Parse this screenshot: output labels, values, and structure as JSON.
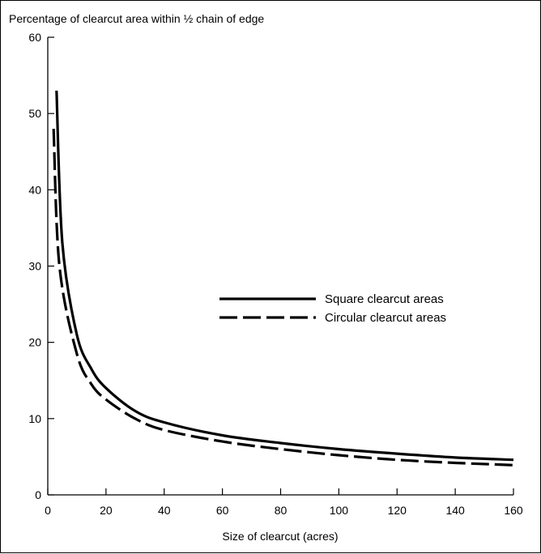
{
  "chart_data": {
    "type": "line",
    "title": "Percentage of clearcut area within ½ chain of edge",
    "xlabel": "Size of clearcut (acres)",
    "ylabel": "",
    "xlim": [
      0,
      160
    ],
    "ylim": [
      0,
      60
    ],
    "xticks": [
      "0",
      "20",
      "40",
      "60",
      "80",
      "100",
      "120",
      "140",
      "160"
    ],
    "yticks": [
      "0",
      "10",
      "20",
      "30",
      "40",
      "50",
      "60"
    ],
    "grid": false,
    "legend_position": "middle-right",
    "series": [
      {
        "name": "Square clearcut areas",
        "style": "solid",
        "x": [
          3,
          5,
          10,
          15,
          20,
          30,
          40,
          60,
          80,
          100,
          120,
          140,
          160
        ],
        "y": [
          53,
          33,
          21,
          16.5,
          14,
          11,
          9.5,
          7.8,
          6.8,
          6.0,
          5.4,
          4.9,
          4.6
        ]
      },
      {
        "name": "Circular clearcut areas",
        "style": "dashed",
        "x": [
          2,
          4,
          10,
          15,
          20,
          30,
          40,
          60,
          80,
          100,
          120,
          140,
          160
        ],
        "y": [
          48,
          30,
          18.5,
          14.5,
          12.5,
          10.0,
          8.5,
          7.0,
          6.0,
          5.2,
          4.6,
          4.2,
          3.9
        ]
      }
    ]
  }
}
